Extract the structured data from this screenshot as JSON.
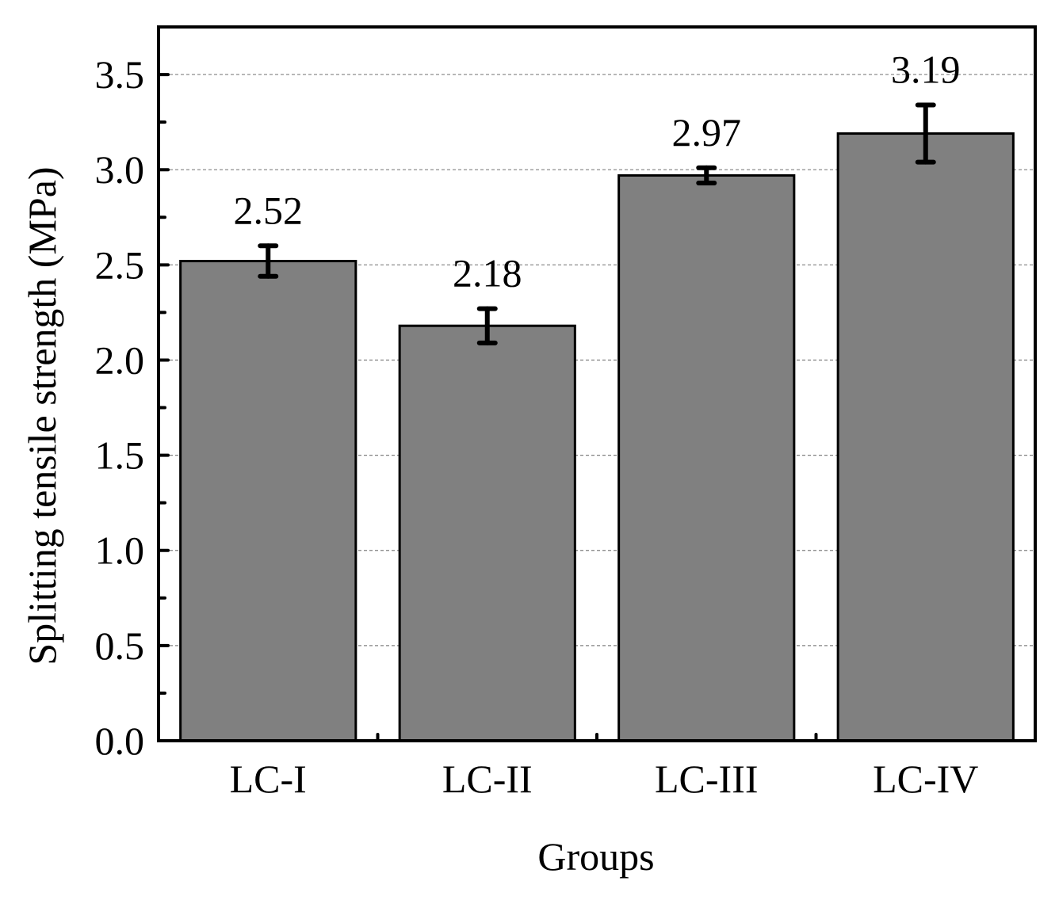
{
  "chart_data": {
    "type": "bar",
    "categories": [
      "LC-I",
      "LC-II",
      "LC-III",
      "LC-IV"
    ],
    "values": [
      2.52,
      2.18,
      2.97,
      3.19
    ],
    "value_labels": [
      "2.52",
      "2.18",
      "2.97",
      "3.19"
    ],
    "error_low": [
      2.44,
      2.09,
      2.93,
      3.04
    ],
    "error_high": [
      2.6,
      2.27,
      3.01,
      3.34
    ],
    "xlabel": "Groups",
    "ylabel": "Splitting tensile strength (MPa)",
    "ylim": [
      0,
      3.75
    ],
    "yticks": [
      0,
      0.5,
      1.0,
      1.5,
      2.0,
      2.5,
      3.0,
      3.5
    ],
    "ytick_labels": [
      "0.0",
      "0.5",
      "1.0",
      "1.5",
      "2.0",
      "2.5",
      "3.0",
      "3.5"
    ],
    "grid": true,
    "bar_color": "#808080"
  }
}
